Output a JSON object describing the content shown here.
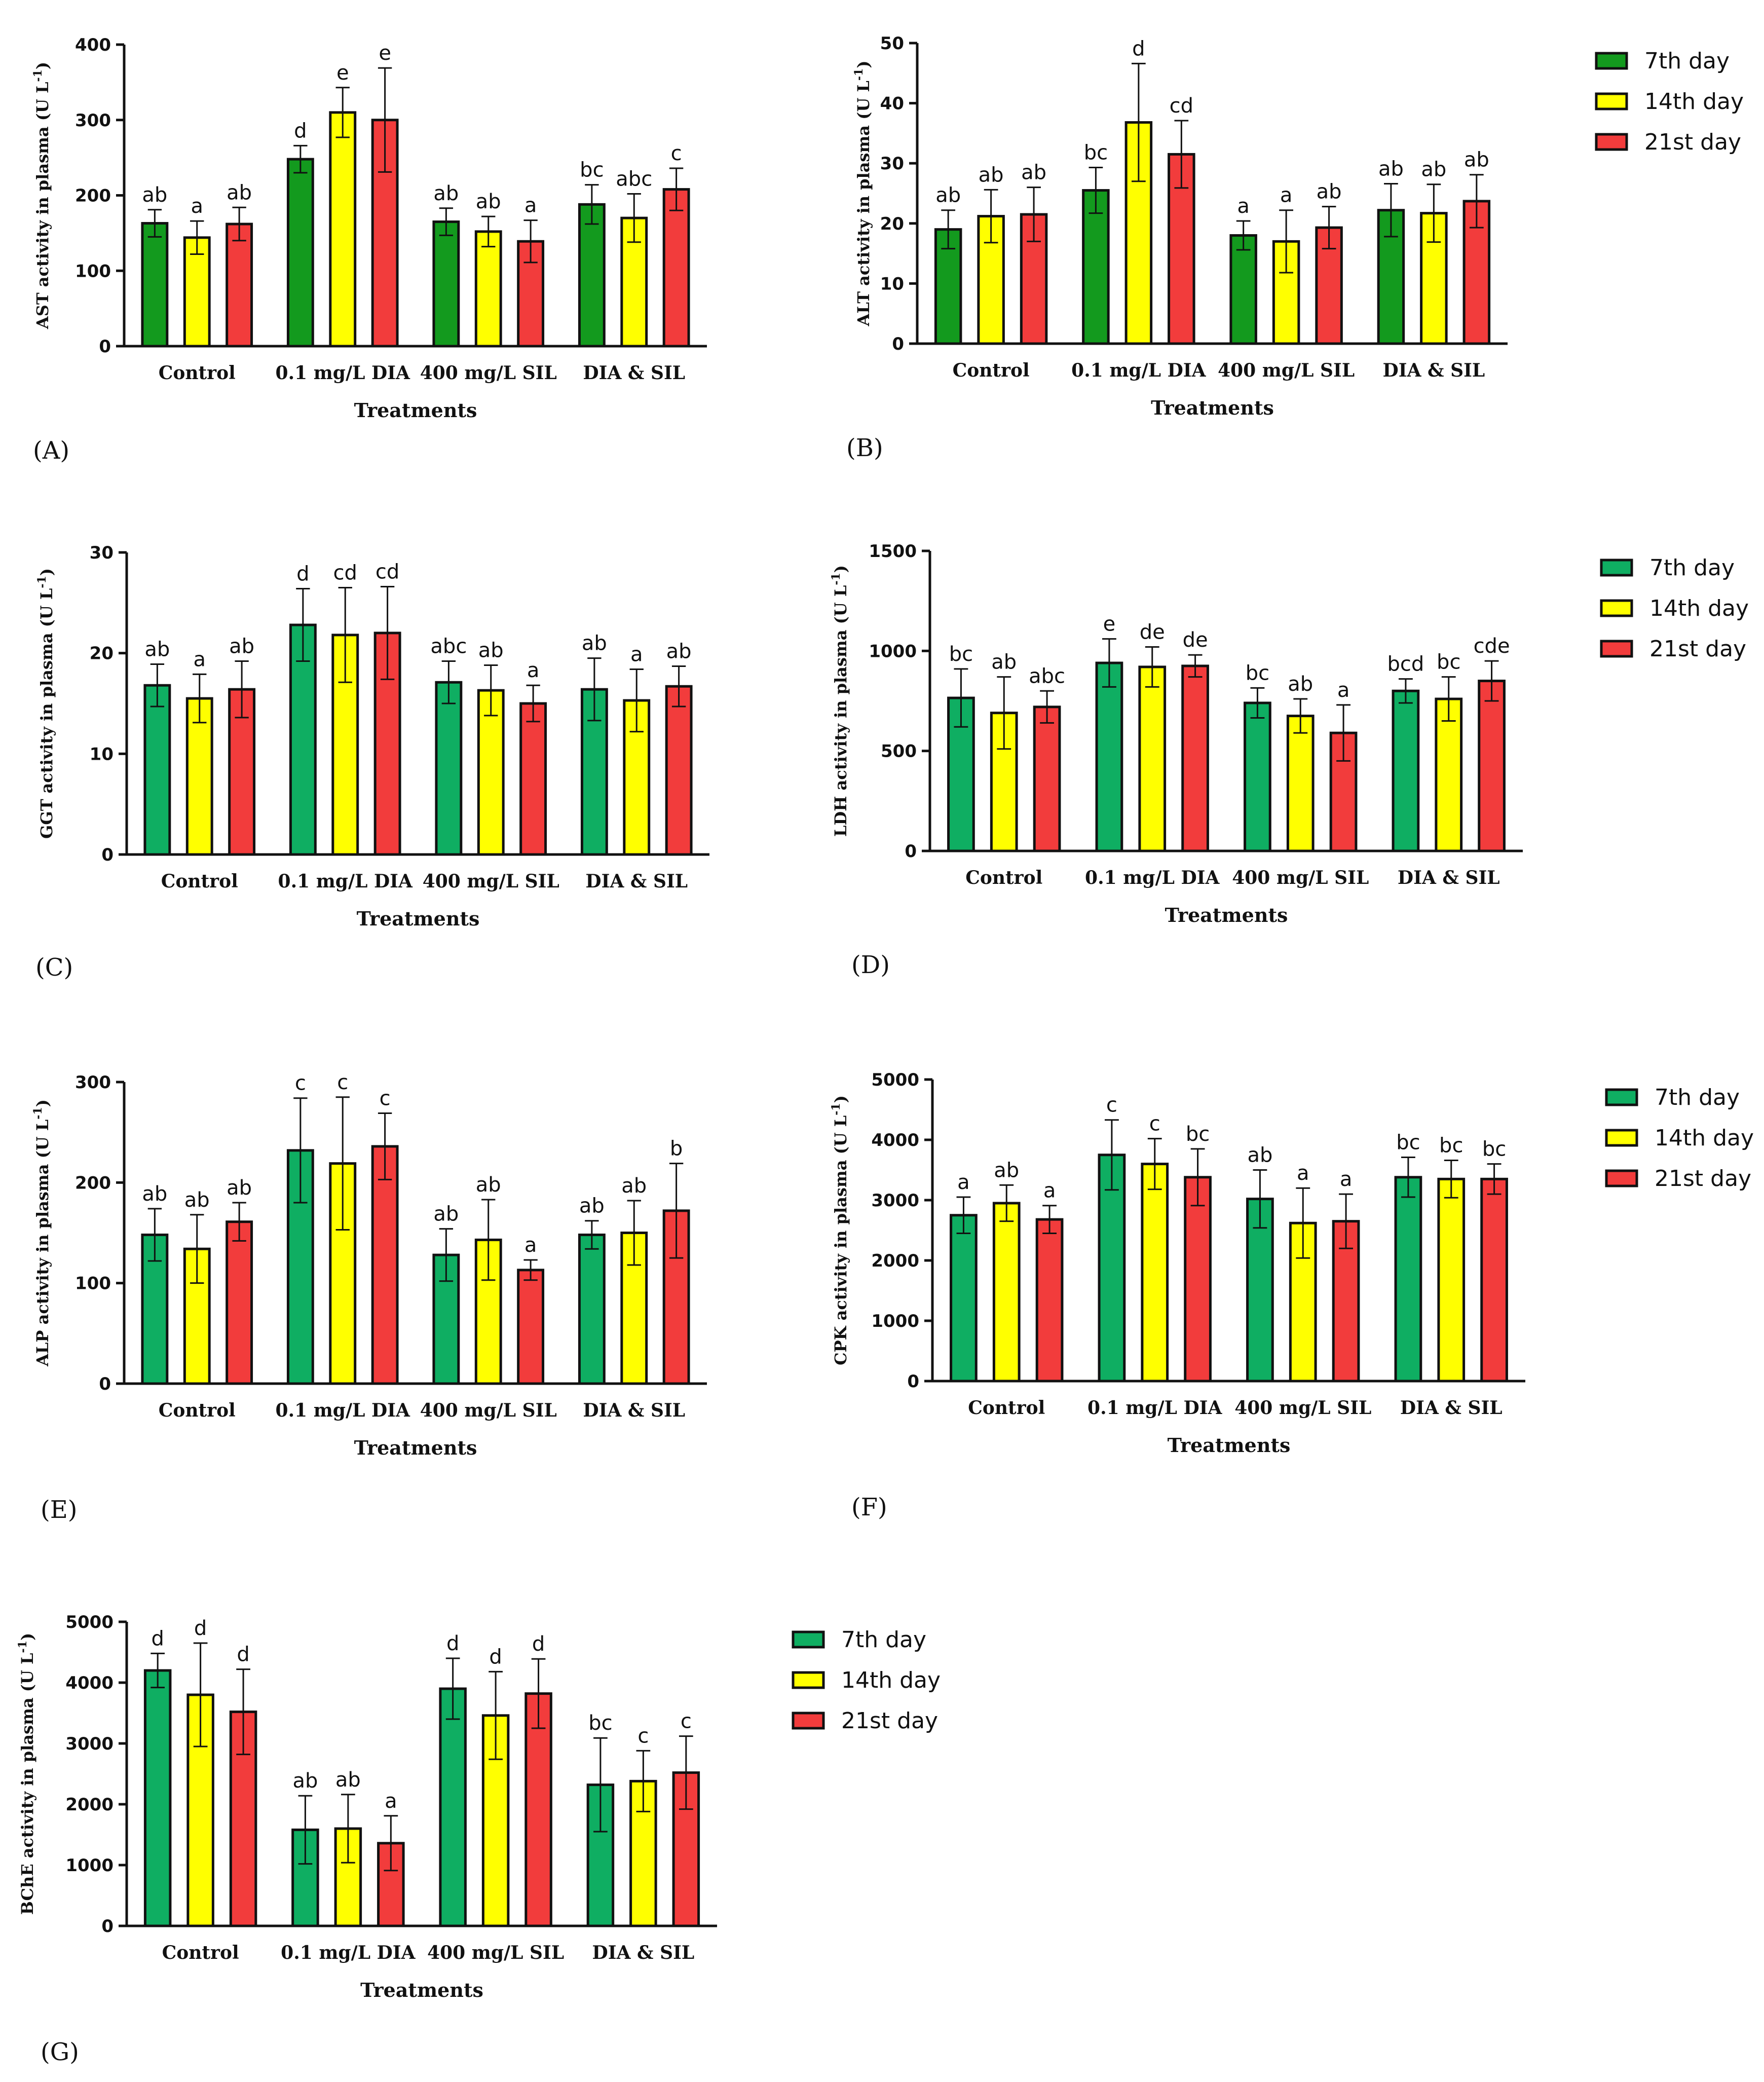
{
  "chart_data": [
    {
      "type": "bar",
      "panel": "(A)",
      "ylabel": "AST activity in plasma (U L",
      "ylabel_sup": "-1",
      "ylabel_end": ")",
      "xlabel": "Treatments",
      "categories": [
        "Control",
        "0.1 mg/L DIA",
        "400  mg/L SIL",
        "DIA & SIL"
      ],
      "ylim": [
        0,
        400
      ],
      "yticks": [
        0,
        100,
        200,
        300,
        400
      ],
      "series": [
        {
          "name": "7th day",
          "values": [
            163,
            248,
            165,
            188
          ],
          "errors": [
            18,
            18,
            18,
            26
          ],
          "labels": [
            "ab",
            "d",
            "ab",
            "bc"
          ]
        },
        {
          "name": "14th day",
          "values": [
            144,
            310,
            152,
            170
          ],
          "errors": [
            22,
            33,
            20,
            32
          ],
          "labels": [
            "a",
            "e",
            "ab",
            "abc"
          ]
        },
        {
          "name": "21st day",
          "values": [
            162,
            300,
            139,
            208
          ],
          "errors": [
            22,
            69,
            28,
            28
          ],
          "labels": [
            "ab",
            "e",
            "a",
            "c"
          ]
        }
      ]
    },
    {
      "type": "bar",
      "panel": "(B)",
      "ylabel": "ALT activity in plasma (U L",
      "ylabel_sup": "-1",
      "ylabel_end": ")",
      "xlabel": "Treatments",
      "categories": [
        "Control",
        "0.1 mg/L DIA",
        "400  mg/L SIL",
        "DIA & SIL"
      ],
      "ylim": [
        0,
        50
      ],
      "yticks": [
        0,
        10,
        20,
        30,
        40,
        50
      ],
      "series": [
        {
          "name": "7th day",
          "values": [
            19,
            25.5,
            18,
            22.2
          ],
          "errors": [
            3.2,
            3.8,
            2.4,
            4.4
          ],
          "labels": [
            "ab",
            "bc",
            "a",
            "ab"
          ]
        },
        {
          "name": "14th day",
          "values": [
            21.2,
            36.8,
            17,
            21.7
          ],
          "errors": [
            4.4,
            9.8,
            5.2,
            4.8
          ],
          "labels": [
            "ab",
            "d",
            "a",
            "ab"
          ]
        },
        {
          "name": "21st day",
          "values": [
            21.5,
            31.5,
            19.3,
            23.7
          ],
          "errors": [
            4.5,
            5.6,
            3.5,
            4.4
          ],
          "labels": [
            "ab",
            "cd",
            "ab",
            "ab"
          ]
        }
      ]
    },
    {
      "type": "bar",
      "panel": "(C)",
      "ylabel": "GGT activity in plasma (U L",
      "ylabel_sup": "-1",
      "ylabel_end": ")",
      "xlabel": "Treatments",
      "categories": [
        "Control",
        "0.1 mg/L DIA",
        "400  mg/L SIL",
        "DIA & SIL"
      ],
      "ylim": [
        0,
        30
      ],
      "yticks": [
        0,
        10,
        20,
        30
      ],
      "series": [
        {
          "name": "7th day",
          "values": [
            16.8,
            22.8,
            17.1,
            16.4
          ],
          "errors": [
            2.1,
            3.6,
            2.1,
            3.1
          ],
          "labels": [
            "ab",
            "d",
            "abc",
            "ab"
          ]
        },
        {
          "name": "14th day",
          "values": [
            15.5,
            21.8,
            16.3,
            15.3
          ],
          "errors": [
            2.4,
            4.7,
            2.5,
            3.1
          ],
          "labels": [
            "a",
            "cd",
            "ab",
            "a"
          ]
        },
        {
          "name": "21st day",
          "values": [
            16.4,
            22,
            15,
            16.7
          ],
          "errors": [
            2.8,
            4.6,
            1.8,
            2
          ],
          "labels": [
            "ab",
            "cd",
            "a",
            "ab"
          ]
        }
      ]
    },
    {
      "type": "bar",
      "panel": "(D)",
      "ylabel": "LDH activity in plasma (U L",
      "ylabel_sup": "-1",
      "ylabel_end": ")",
      "xlabel": "Treatments",
      "categories": [
        "Control",
        "0.1 mg/L DIA",
        "400  mg/L SIL",
        "DIA & SIL"
      ],
      "ylim": [
        0,
        1500
      ],
      "yticks": [
        0,
        500,
        1000,
        1500
      ],
      "series": [
        {
          "name": "7th day",
          "values": [
            765,
            940,
            740,
            800
          ],
          "errors": [
            145,
            120,
            75,
            60
          ],
          "labels": [
            "bc",
            "e",
            "bc",
            "bcd"
          ]
        },
        {
          "name": "14th day",
          "values": [
            690,
            920,
            675,
            760
          ],
          "errors": [
            180,
            100,
            85,
            110
          ],
          "labels": [
            "ab",
            "de",
            "ab",
            "bc"
          ]
        },
        {
          "name": "21st day",
          "values": [
            720,
            925,
            590,
            850
          ],
          "errors": [
            80,
            55,
            140,
            100
          ],
          "labels": [
            "abc",
            "de",
            "a",
            "cde"
          ]
        }
      ]
    },
    {
      "type": "bar",
      "panel": "(E)",
      "ylabel": "ALP activity in plasma (U L",
      "ylabel_sup": "-1",
      "ylabel_end": ")",
      "xlabel": "Treatments",
      "categories": [
        "Control",
        "0.1 mg/L DIA",
        "400  mg/L SIL",
        "DIA & SIL"
      ],
      "ylim": [
        0,
        300
      ],
      "yticks": [
        0,
        100,
        200,
        300
      ],
      "series": [
        {
          "name": "7th day",
          "values": [
            148,
            232,
            128,
            148
          ],
          "errors": [
            26,
            52,
            26,
            14
          ],
          "labels": [
            "ab",
            "c",
            "ab",
            "ab"
          ]
        },
        {
          "name": "14th day",
          "values": [
            134,
            219,
            143,
            150
          ],
          "errors": [
            34,
            66,
            40,
            32
          ],
          "labels": [
            "ab",
            "c",
            "ab",
            "ab"
          ]
        },
        {
          "name": "21st day",
          "values": [
            161,
            236,
            113,
            172
          ],
          "errors": [
            19,
            33,
            10,
            47
          ],
          "labels": [
            "ab",
            "c",
            "a",
            "b"
          ]
        }
      ]
    },
    {
      "type": "bar",
      "panel": "(F)",
      "ylabel": "CPK activity in plasma (U L",
      "ylabel_sup": "-1",
      "ylabel_end": ")",
      "xlabel": "Treatments",
      "categories": [
        "Control",
        "0.1 mg/L DIA",
        "400  mg/L SIL",
        "DIA & SIL"
      ],
      "ylim": [
        0,
        5000
      ],
      "yticks": [
        0,
        1000,
        2000,
        3000,
        4000,
        5000
      ],
      "series": [
        {
          "name": "7th day",
          "values": [
            2750,
            3750,
            3020,
            3380
          ],
          "errors": [
            300,
            580,
            480,
            330
          ],
          "labels": [
            "a",
            "c",
            "ab",
            "bc"
          ]
        },
        {
          "name": "14th day",
          "values": [
            2950,
            3600,
            2620,
            3350
          ],
          "errors": [
            300,
            420,
            580,
            310
          ],
          "labels": [
            "ab",
            "c",
            "a",
            "bc"
          ]
        },
        {
          "name": "21st day",
          "values": [
            2680,
            3380,
            2650,
            3350
          ],
          "errors": [
            230,
            470,
            450,
            250
          ],
          "labels": [
            "a",
            "bc",
            "a",
            "bc"
          ]
        }
      ]
    },
    {
      "type": "bar",
      "panel": "(G)",
      "ylabel": "BChE activity in plasma (U L",
      "ylabel_sup": "-1",
      "ylabel_end": ")",
      "xlabel": "Treatments",
      "categories": [
        "Control",
        "0.1 mg/L DIA",
        "400  mg/L SIL",
        "DIA & SIL"
      ],
      "ylim": [
        0,
        5000
      ],
      "yticks": [
        0,
        1000,
        2000,
        3000,
        4000,
        5000
      ],
      "series": [
        {
          "name": "7th day",
          "values": [
            4200,
            1580,
            3900,
            2320
          ],
          "errors": [
            280,
            560,
            500,
            770
          ],
          "labels": [
            "d",
            "ab",
            "d",
            "bc"
          ]
        },
        {
          "name": "14th day",
          "values": [
            3800,
            1600,
            3460,
            2380
          ],
          "errors": [
            850,
            560,
            720,
            500
          ],
          "labels": [
            "d",
            "ab",
            "d",
            "c"
          ]
        },
        {
          "name": "21st day",
          "values": [
            3520,
            1360,
            3820,
            2520
          ],
          "errors": [
            700,
            450,
            570,
            600
          ],
          "labels": [
            "d",
            "a",
            "d",
            "c"
          ]
        }
      ]
    }
  ],
  "legends": [
    {
      "colors": [
        "#139a1e",
        "#ffff00",
        "#f23c3c"
      ],
      "entries": [
        "7th day",
        "14th day",
        "21st day"
      ]
    },
    {
      "colors": [
        "#0fae62",
        "#ffff00",
        "#f23c3c"
      ],
      "entries": [
        "7th day",
        "14th day",
        "21st day"
      ]
    },
    {
      "colors": [
        "#0fae62",
        "#ffff00",
        "#f23c3c"
      ],
      "entries": [
        "7th day",
        "14th day",
        "21st day"
      ]
    },
    {
      "colors": [
        "#0fae62",
        "#ffff00",
        "#f23c3c"
      ],
      "entries": [
        "7th day",
        "14th day",
        "21st day"
      ]
    }
  ],
  "panel_colors": [
    [
      "#139a1e",
      "#ffff00",
      "#f23c3c"
    ],
    [
      "#139a1e",
      "#ffff00",
      "#f23c3c"
    ],
    [
      "#0fae62",
      "#ffff00",
      "#f23c3c"
    ],
    [
      "#0fae62",
      "#ffff00",
      "#f23c3c"
    ],
    [
      "#0fae62",
      "#ffff00",
      "#f23c3c"
    ],
    [
      "#0fae62",
      "#ffff00",
      "#f23c3c"
    ],
    [
      "#0fae62",
      "#ffff00",
      "#f23c3c"
    ]
  ]
}
